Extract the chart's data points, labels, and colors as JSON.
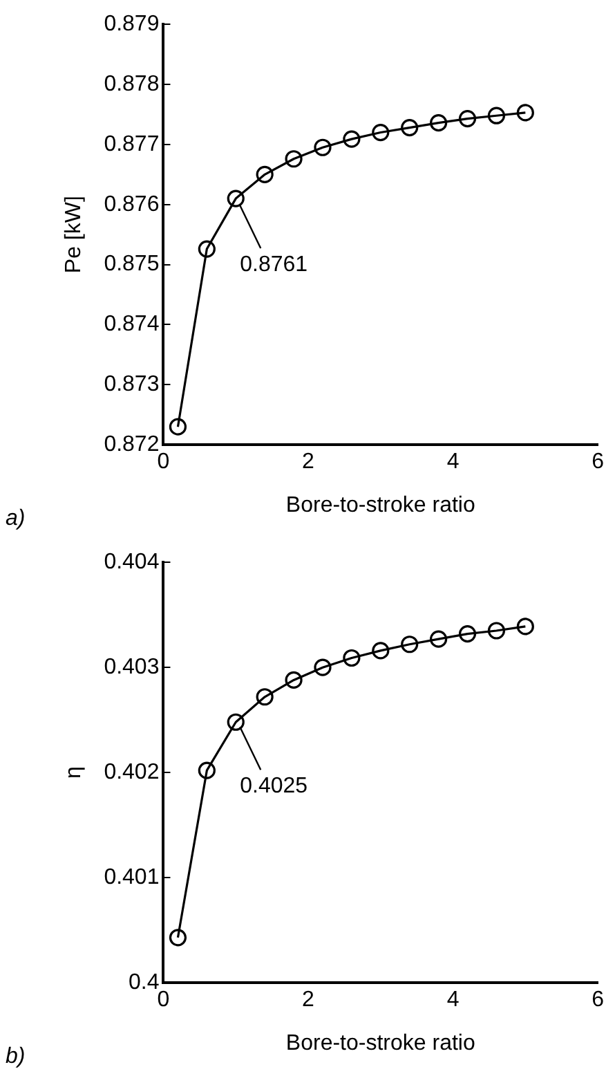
{
  "chart_data": [
    {
      "type": "line",
      "ylabel": "Pe [kW]",
      "xlabel": "Bore-to-stroke ratio",
      "x": [
        0.2,
        0.6,
        1.0,
        1.4,
        1.8,
        2.2,
        2.6,
        3.0,
        3.4,
        3.8,
        4.2,
        4.6,
        5.0
      ],
      "series": [
        {
          "color": "#000000",
          "values": [
            0.8723,
            0.87526,
            0.8761,
            0.8765,
            0.87676,
            0.87695,
            0.87709,
            0.8772,
            0.87728,
            0.87736,
            0.87743,
            0.87748,
            0.87753
          ]
        }
      ],
      "xlim": [
        0,
        6
      ],
      "xticks": [
        0,
        2,
        4,
        6
      ],
      "ylim": [
        0.872,
        0.879
      ],
      "yticks": [
        0.872,
        0.873,
        0.874,
        0.875,
        0.876,
        0.877,
        0.878,
        0.879
      ],
      "marker": "circle",
      "line_style": "solid",
      "grid": false,
      "legend": false,
      "annotations": [
        {
          "text": "0.8761",
          "x": 1.0,
          "y": 0.8761
        },
        "a)"
      ]
    },
    {
      "type": "line",
      "ylabel": "η",
      "xlabel": "Bore-to-stroke ratio",
      "x": [
        0.2,
        0.6,
        1.0,
        1.4,
        1.8,
        2.2,
        2.6,
        3.0,
        3.4,
        3.8,
        4.2,
        4.6,
        5.0
      ],
      "series": [
        {
          "color": "#000000",
          "values": [
            0.40043,
            0.40202,
            0.40248,
            0.40272,
            0.40288,
            0.403,
            0.40309,
            0.40316,
            0.40322,
            0.40327,
            0.40332,
            0.40335,
            0.40339
          ]
        }
      ],
      "xlim": [
        0,
        6
      ],
      "xticks": [
        0,
        2,
        4,
        6
      ],
      "ylim": [
        0.4,
        0.404
      ],
      "yticks": [
        0.4,
        0.401,
        0.402,
        0.403,
        0.404
      ],
      "marker": "circle",
      "line_style": "solid",
      "grid": false,
      "legend": false,
      "annotations": [
        {
          "text": "0.4025",
          "x": 1.0,
          "y": 0.4025
        },
        "b)"
      ]
    }
  ]
}
